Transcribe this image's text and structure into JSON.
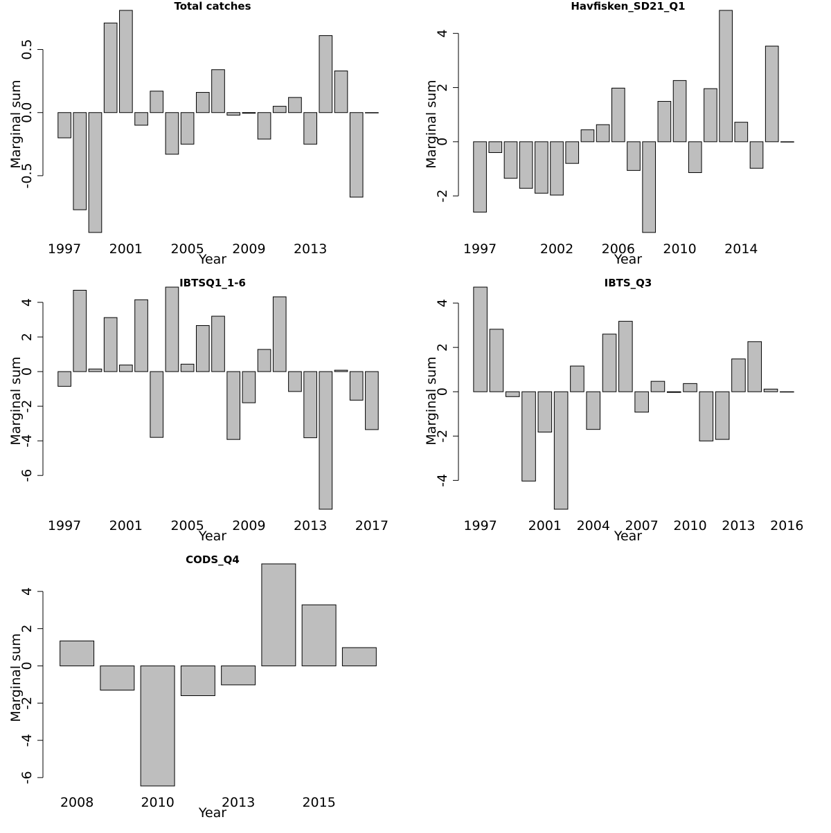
{
  "chart_data": [
    {
      "type": "bar",
      "title": "Total catches",
      "xlabel": "Year",
      "ylabel": "Marginal sum",
      "categories": [
        "1997",
        "1998",
        "1999",
        "2000",
        "2001",
        "2002",
        "2003",
        "2004",
        "2005",
        "2006",
        "2007",
        "2008",
        "2009",
        "2010",
        "2011",
        "2012",
        "2013",
        "2014",
        "2015",
        "2016",
        "2017"
      ],
      "values": [
        -0.2,
        -0.77,
        -0.95,
        0.71,
        0.81,
        -0.1,
        0.17,
        -0.33,
        -0.25,
        0.16,
        0.34,
        -0.02,
        -0.005,
        -0.21,
        0.05,
        0.12,
        -0.25,
        0.61,
        0.33,
        -0.67,
        0
      ],
      "x_tick_labels": [
        "1997",
        "2001",
        "2005",
        "2009",
        "2013"
      ],
      "y_ticks": [
        -0.5,
        0.0,
        0.5
      ],
      "y_tick_labels": [
        "-0.5",
        "0.0",
        "0.5"
      ],
      "ylim": [
        -0.95,
        0.81
      ]
    },
    {
      "type": "bar",
      "title": "Havfisken_SD21_Q1",
      "xlabel": "Year",
      "ylabel": "Marginal sum",
      "categories": [
        "1997",
        "1998",
        "1999",
        "2000",
        "2001",
        "2002",
        "2003",
        "2004",
        "2005",
        "2006",
        "2007",
        "2008",
        "2009",
        "2010",
        "2011",
        "2012",
        "2013",
        "2014",
        "2015",
        "2016",
        "2017"
      ],
      "values": [
        -2.6,
        -0.4,
        -1.35,
        -1.72,
        -1.9,
        -1.97,
        -0.8,
        0.44,
        0.63,
        1.98,
        -1.06,
        -3.35,
        1.49,
        2.26,
        -1.14,
        1.96,
        4.85,
        0.72,
        -0.98,
        3.53,
        0
      ],
      "x_tick_labels": [
        "1997",
        "2002",
        "2006",
        "2010",
        "2014"
      ],
      "y_ticks": [
        -2,
        0,
        2,
        4
      ],
      "y_tick_labels": [
        "-2",
        "0",
        "2",
        "4"
      ],
      "ylim": [
        -3.35,
        4.85
      ]
    },
    {
      "type": "bar",
      "title": "IBTSQ1_1-6",
      "xlabel": "Year",
      "ylabel": "Marginal sum",
      "categories": [
        "1997",
        "1998",
        "1999",
        "2000",
        "2001",
        "2002",
        "2003",
        "2004",
        "2005",
        "2006",
        "2007",
        "2008",
        "2009",
        "2010",
        "2011",
        "2012",
        "2013",
        "2014",
        "2015",
        "2016",
        "2017"
      ],
      "values": [
        -0.85,
        4.7,
        0.15,
        3.12,
        0.38,
        4.15,
        -3.8,
        4.88,
        0.43,
        2.66,
        3.2,
        -3.92,
        -1.8,
        1.28,
        4.32,
        -1.15,
        -3.82,
        -7.95,
        0.08,
        -1.65,
        -3.35
      ],
      "x_tick_labels": [
        "1997",
        "2001",
        "2005",
        "2009",
        "2013",
        "2017"
      ],
      "y_ticks": [
        -6,
        -4,
        -2,
        0,
        2,
        4
      ],
      "y_tick_labels": [
        "-6",
        "-4",
        "-2",
        "0",
        "2",
        "4"
      ],
      "ylim": [
        -7.95,
        4.88
      ]
    },
    {
      "type": "bar",
      "title": "IBTS_Q3",
      "xlabel": "Year",
      "ylabel": "Marginal sum",
      "categories": [
        "1997",
        "1998",
        "1999",
        "2000",
        "2001",
        "2002",
        "2003",
        "2004",
        "2005",
        "2006",
        "2007",
        "2008",
        "2009",
        "2010",
        "2011",
        "2012",
        "2013",
        "2014",
        "2015",
        "2016"
      ],
      "values": [
        4.72,
        2.82,
        -0.22,
        -4.03,
        -1.82,
        -5.3,
        1.16,
        -1.7,
        2.6,
        3.18,
        -0.92,
        0.47,
        -0.03,
        0.37,
        -2.22,
        -2.15,
        1.48,
        2.26,
        0.12,
        0
      ],
      "x_tick_labels": [
        "1997",
        "2001",
        "2004",
        "2007",
        "2010",
        "2013",
        "2016"
      ],
      "y_ticks": [
        -4,
        -2,
        0,
        2,
        4
      ],
      "y_tick_labels": [
        "-4",
        "-2",
        "0",
        "2",
        "4"
      ],
      "ylim": [
        -5.3,
        4.72
      ]
    },
    {
      "type": "bar",
      "title": "CODS_Q4",
      "xlabel": "Year",
      "ylabel": "Marginal sum",
      "categories": [
        "2008",
        "2009",
        "2010",
        "2012",
        "2013",
        "2014",
        "2015",
        "2016"
      ],
      "values": [
        1.34,
        -1.3,
        -6.45,
        -1.6,
        -1.02,
        5.48,
        3.28,
        0.98
      ],
      "x_tick_labels": [
        "2008",
        "2010",
        "2013",
        "2015"
      ],
      "y_ticks": [
        -6,
        -4,
        -2,
        0,
        2,
        4
      ],
      "y_tick_labels": [
        "-6",
        "-4",
        "-2",
        "0",
        "2",
        "4"
      ],
      "ylim": [
        -6.45,
        5.48
      ]
    }
  ]
}
